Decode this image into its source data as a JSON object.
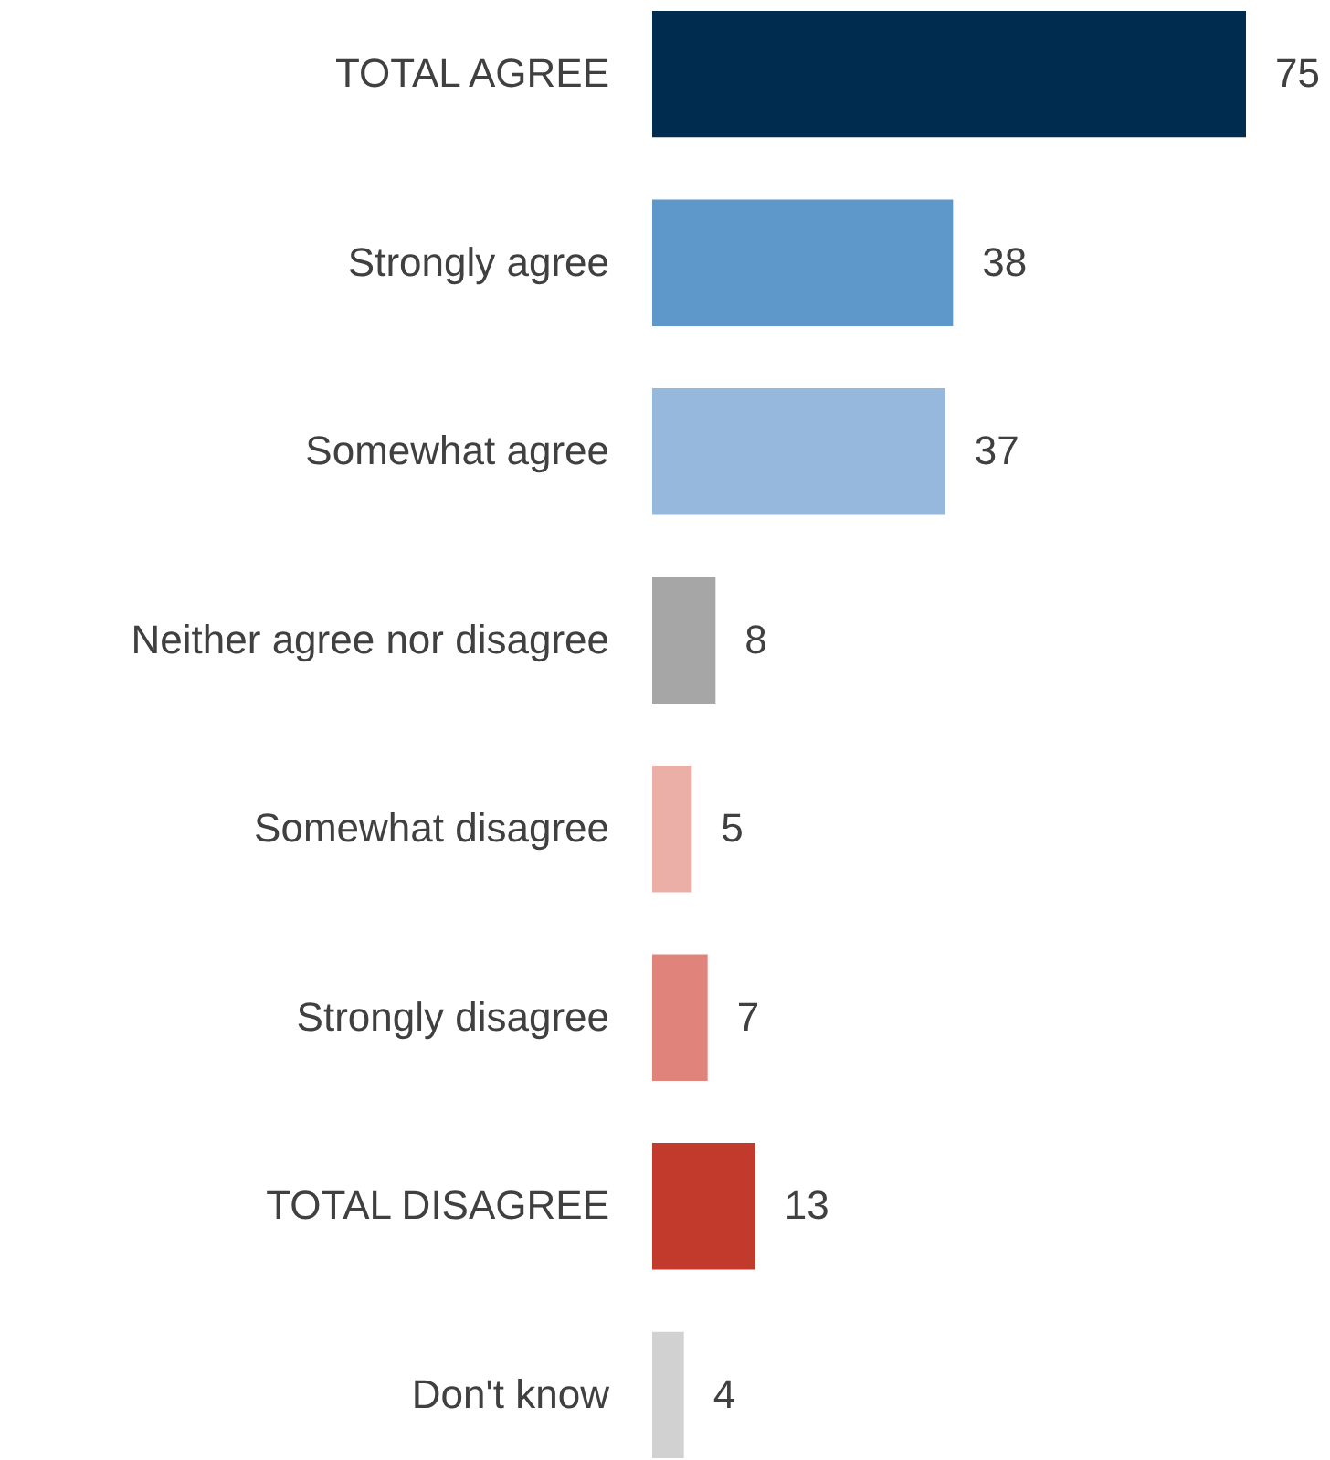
{
  "chart_data": {
    "type": "bar",
    "orientation": "horizontal",
    "data_labels": true,
    "categories": [
      "TOTAL AGREE",
      "Strongly agree",
      "Somewhat agree",
      "Neither agree nor disagree",
      "Somewhat disagree",
      "Strongly disagree",
      "TOTAL DISAGREE",
      "Don't know"
    ],
    "values": [
      75,
      38,
      37,
      8,
      5,
      7,
      13,
      4
    ],
    "colors": [
      "#002d4f",
      "#5e97c9",
      "#95b8dc",
      "#a6a6a6",
      "#ebafa8",
      "#e0837a",
      "#c23a2c",
      "#d1d1d1"
    ]
  }
}
